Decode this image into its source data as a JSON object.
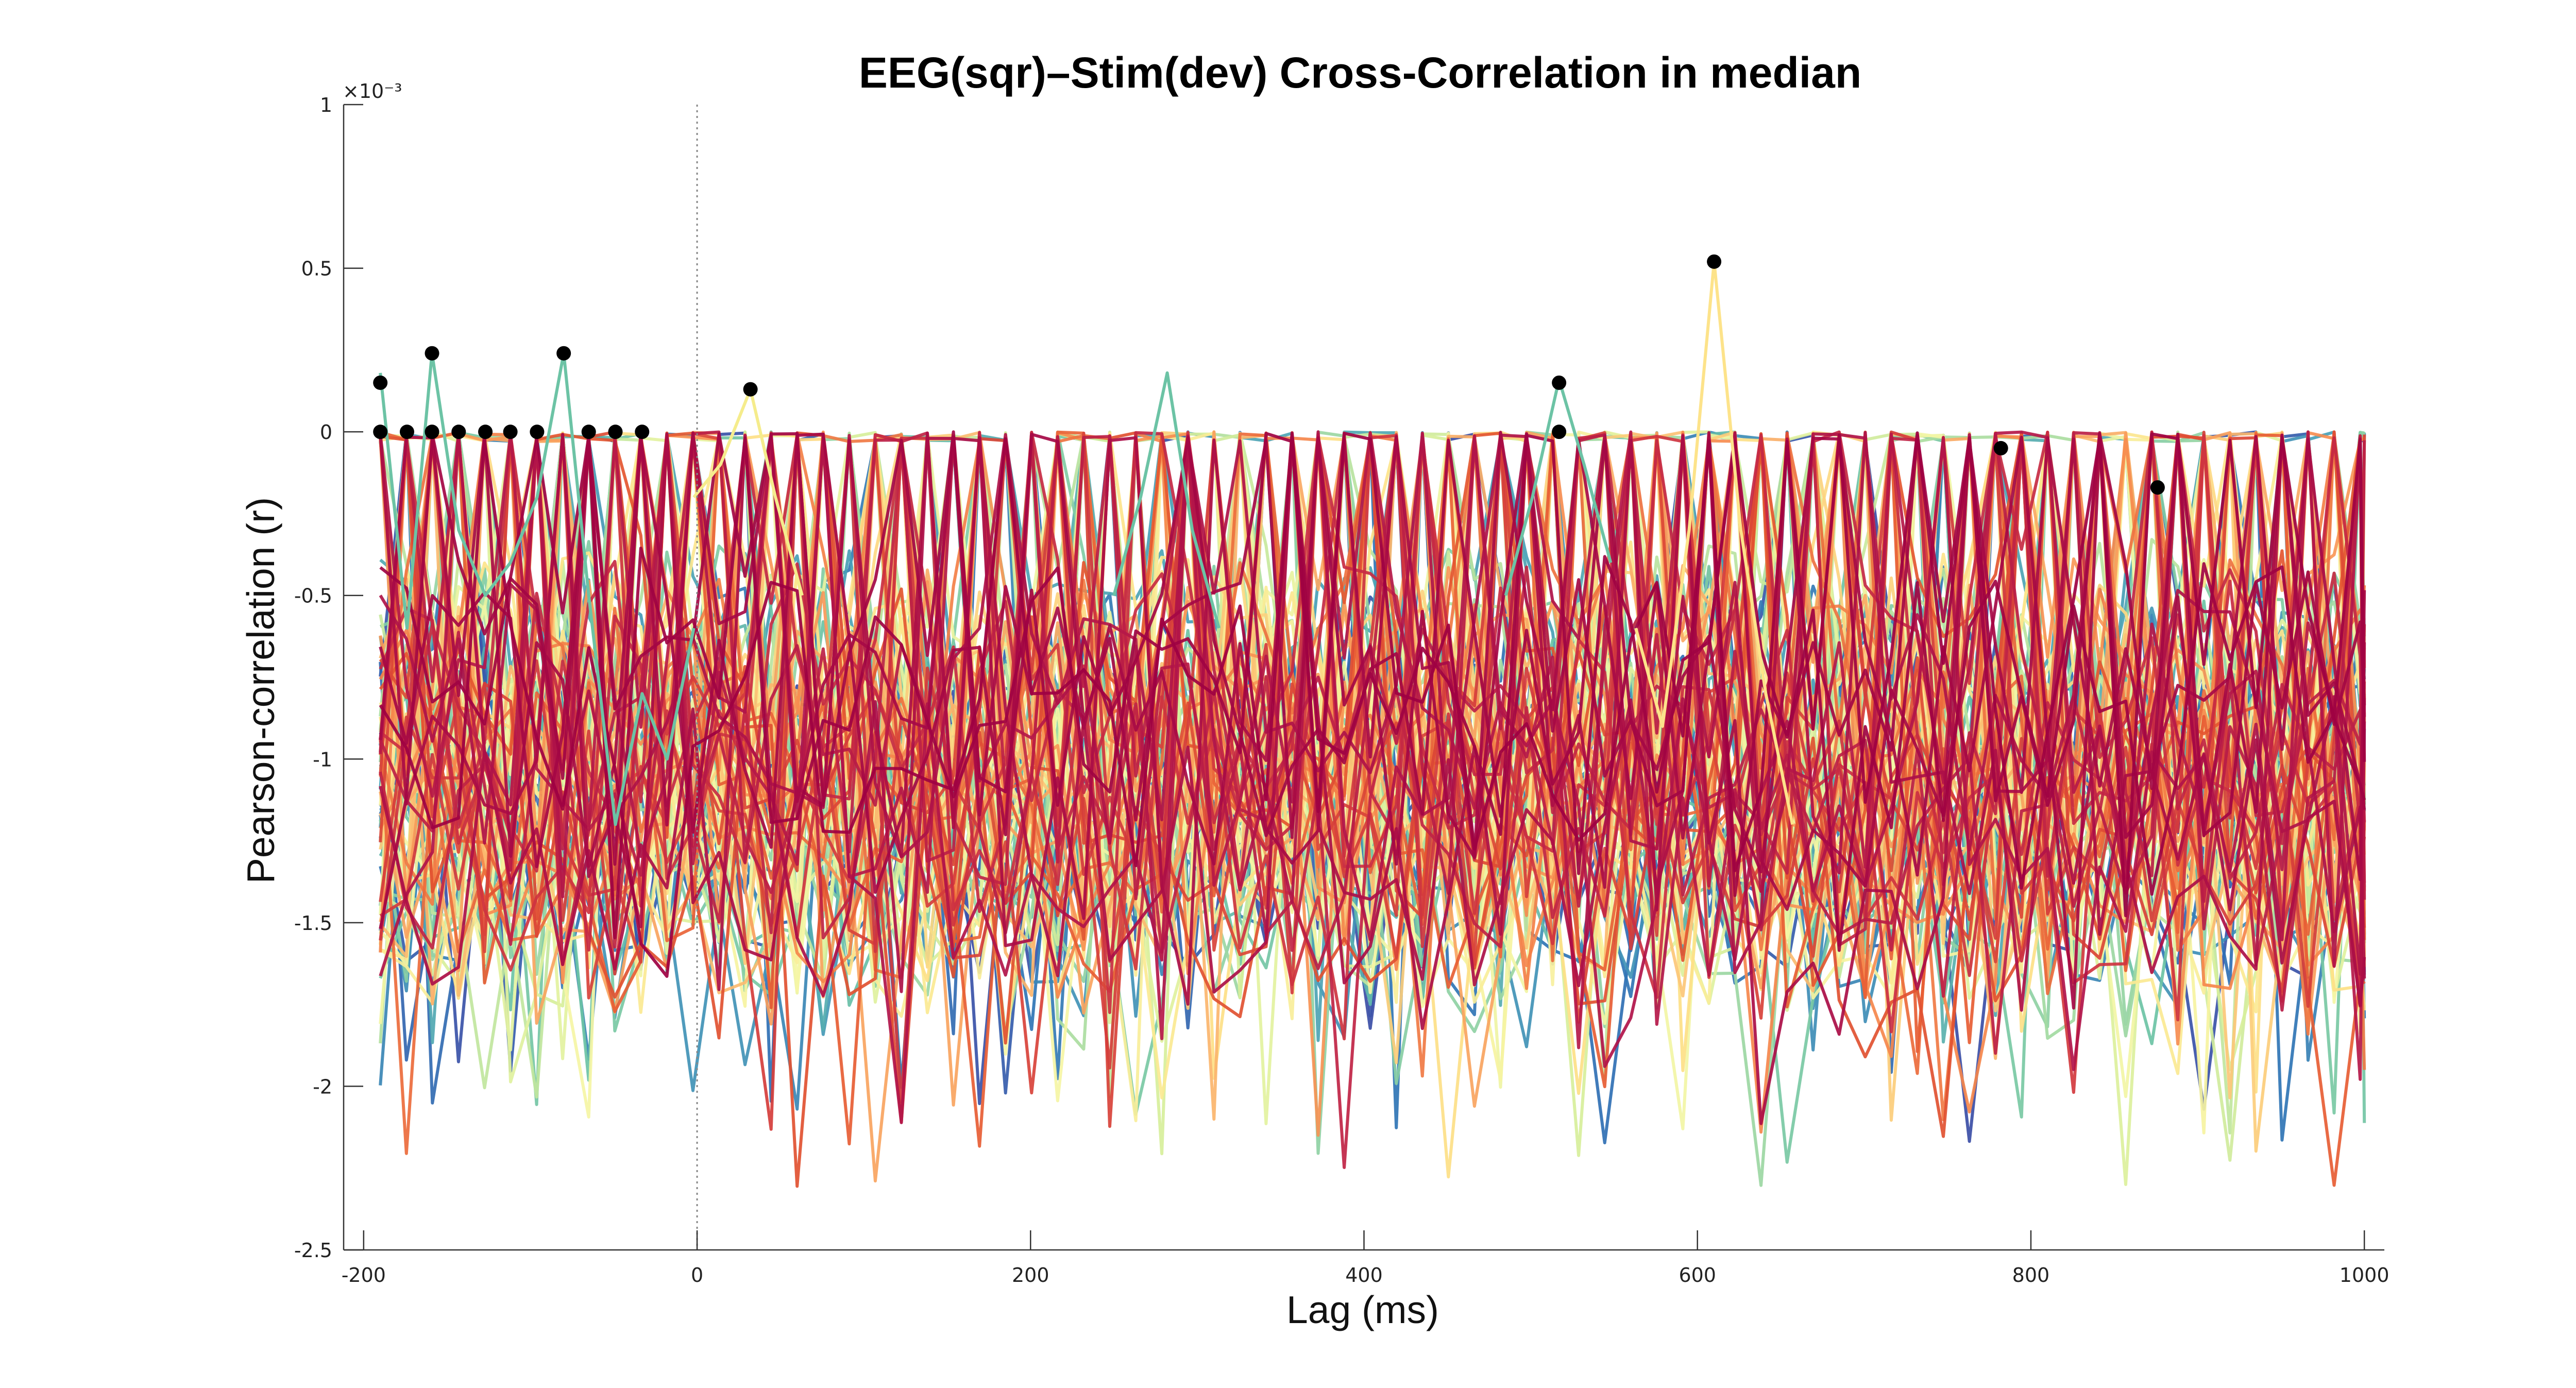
{
  "chart_data": {
    "type": "line",
    "title": "EEG(sqr)–Stim(dev) Cross-Correlation in median",
    "xlabel": "Lag (ms)",
    "ylabel": "Pearson-correlation (r)",
    "y_exponent_label": "×10⁻³",
    "y_scale_factor": 0.001,
    "xlim": [
      -212,
      1012
    ],
    "ylim": [
      -2.5,
      1
    ],
    "x_ticks": [
      -200,
      0,
      200,
      400,
      600,
      800,
      1000
    ],
    "x_tick_labels": [
      "-200",
      "0",
      "200",
      "400",
      "600",
      "800",
      "1000"
    ],
    "y_ticks": [
      1,
      0.5,
      0,
      -0.5,
      -1,
      -1.5,
      -2,
      -2.5
    ],
    "y_tick_labels": [
      "1",
      "0.5",
      "0",
      "-0.5",
      "-1",
      "-1.5",
      "-2",
      "-2.5"
    ],
    "zero_lag_marker": {
      "x": 0,
      "style": "dotted",
      "color": "#888888"
    },
    "grid": false,
    "legend": "none",
    "lag_start": -190,
    "lag_step": 15.625,
    "lag_end": 1000,
    "num_series": 100,
    "colormap": "Spectral",
    "colormap_stops": [
      "#3b4ea6",
      "#2f73b5",
      "#49a0b6",
      "#6cc3a5",
      "#9fd8a3",
      "#d8ef9b",
      "#f5f6a6",
      "#fde38a",
      "#fbb56c",
      "#f68a4e",
      "#e4552f",
      "#cc3042",
      "#b0134a",
      "#9e0142"
    ],
    "series_line_width": 6,
    "peak_points": [
      {
        "x": -190,
        "y": 0.15
      },
      {
        "x": -190,
        "y": 0.0
      },
      {
        "x": -174,
        "y": 0.0
      },
      {
        "x": -159,
        "y": 0.24
      },
      {
        "x": -159,
        "y": 0.0
      },
      {
        "x": -143,
        "y": 0.0
      },
      {
        "x": -127,
        "y": 0.0
      },
      {
        "x": -112,
        "y": 0.0
      },
      {
        "x": -96,
        "y": 0.0
      },
      {
        "x": -80,
        "y": 0.24
      },
      {
        "x": -65,
        "y": 0.0
      },
      {
        "x": -49,
        "y": 0.0
      },
      {
        "x": -33,
        "y": 0.0
      },
      {
        "x": 32,
        "y": 0.13
      },
      {
        "x": 517,
        "y": 0.15
      },
      {
        "x": 517,
        "y": 0.0
      },
      {
        "x": 610,
        "y": 0.52
      },
      {
        "x": 782,
        "y": -0.05
      },
      {
        "x": 876,
        "y": -0.17
      }
    ],
    "peak_point_color": "#000000",
    "highlighted_series": [
      {
        "color": "#6cc3a5",
        "points": [
          [
            -190,
            0.18
          ],
          [
            -174,
            -0.6
          ],
          [
            -159,
            0.24
          ],
          [
            -143,
            -0.3
          ],
          [
            -127,
            -0.5
          ],
          [
            -112,
            -0.4
          ],
          [
            -96,
            -0.2
          ],
          [
            -80,
            0.24
          ],
          [
            -65,
            -0.5
          ],
          [
            -49,
            -1.2
          ],
          [
            -33,
            -0.8
          ],
          [
            -18,
            -1.0
          ],
          [
            -2,
            -0.6
          ]
        ]
      },
      {
        "color": "#f5ec8c",
        "points": [
          [
            -2,
            -0.2
          ],
          [
            14,
            -0.1
          ],
          [
            32,
            0.13
          ],
          [
            47,
            -0.2
          ],
          [
            63,
            -0.5
          ]
        ]
      },
      {
        "color": "#6cc3a5",
        "points": [
          [
            250,
            -0.5
          ],
          [
            266,
            -0.2
          ],
          [
            282,
            0.18
          ],
          [
            297,
            -0.3
          ],
          [
            313,
            -0.6
          ]
        ]
      },
      {
        "color": "#6cc3a5",
        "points": [
          [
            485,
            -0.5
          ],
          [
            501,
            -0.2
          ],
          [
            517,
            0.16
          ],
          [
            532,
            -0.1
          ],
          [
            548,
            -0.4
          ]
        ]
      },
      {
        "color": "#fde38a",
        "points": [
          [
            563,
            -0.6
          ],
          [
            579,
            -0.9
          ],
          [
            595,
            -0.3
          ],
          [
            610,
            0.52
          ],
          [
            626,
            -0.3
          ],
          [
            641,
            -0.8
          ],
          [
            657,
            -1.2
          ]
        ]
      }
    ]
  }
}
